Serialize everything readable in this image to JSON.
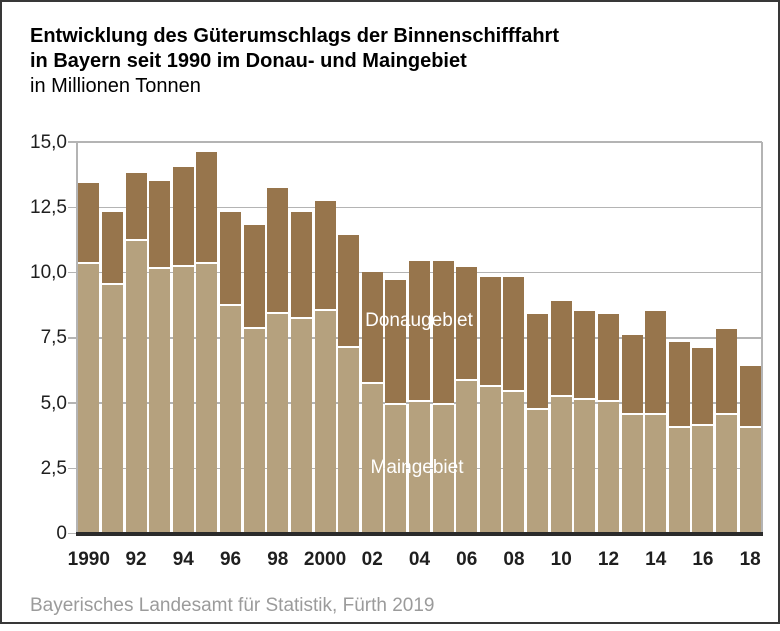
{
  "header": {
    "title_line1": "Entwicklung des Güterumschlags der Binnenschifffahrt",
    "title_line2": "in Bayern seit 1990 im Donau- und Maingebiet",
    "subtitle": "in Millionen Tonnen"
  },
  "footer": {
    "source": "Bayerisches Landesamt für Statistik, Fürth 2019"
  },
  "colors": {
    "maingebiet_bar": "#b5a17e",
    "donaugebiet_bar": "#97754c",
    "gridline": "#b4b4b4",
    "baseline": "#2b2b2b",
    "frame_border": "#383838",
    "source_text": "#9b9b9b",
    "inside_label_text": "#ffffff"
  },
  "chart_data": {
    "type": "bar",
    "stacked": true,
    "title": "Entwicklung des Güterumschlags der Binnenschifffahrt in Bayern seit 1990 im Donau- und Maingebiet",
    "unit": "in Millionen Tonnen",
    "grid": true,
    "legend_position": "inside-bars",
    "ylim": [
      0,
      15
    ],
    "categories": [
      1990,
      1991,
      1992,
      1993,
      1994,
      1995,
      1996,
      1997,
      1998,
      1999,
      2000,
      2001,
      2002,
      2003,
      2004,
      2005,
      2006,
      2007,
      2008,
      2009,
      2010,
      2011,
      2012,
      2013,
      2014,
      2015,
      2016,
      2017,
      2018
    ],
    "series": [
      {
        "name": "Maingebiet",
        "color": "#b5a17e",
        "values": [
          10.4,
          9.6,
          11.3,
          10.2,
          10.3,
          10.4,
          8.8,
          7.9,
          8.5,
          8.3,
          8.6,
          7.2,
          5.8,
          5.0,
          5.1,
          5.0,
          5.9,
          5.7,
          5.5,
          4.8,
          5.3,
          5.2,
          5.1,
          4.6,
          4.6,
          4.1,
          4.2,
          4.6,
          4.1
        ]
      },
      {
        "name": "Donaugebiet",
        "color": "#97754c",
        "values": [
          3.1,
          2.8,
          2.6,
          3.4,
          3.8,
          4.3,
          3.6,
          4.0,
          4.8,
          4.1,
          4.2,
          4.3,
          4.3,
          4.8,
          5.4,
          5.5,
          4.4,
          4.2,
          4.4,
          3.7,
          3.7,
          3.4,
          3.4,
          3.1,
          4.0,
          3.3,
          3.0,
          3.3,
          2.4
        ]
      }
    ],
    "y_ticks": [
      {
        "value": 0,
        "label": "0"
      },
      {
        "value": 2.5,
        "label": "2,5"
      },
      {
        "value": 5,
        "label": "5,0"
      },
      {
        "value": 7.5,
        "label": "7,5"
      },
      {
        "value": 10,
        "label": "10,0"
      },
      {
        "value": 12.5,
        "label": "12,5"
      },
      {
        "value": 15,
        "label": "15,0"
      }
    ],
    "x_ticks": [
      {
        "index": 0,
        "label": "1990"
      },
      {
        "index": 2,
        "label": "92"
      },
      {
        "index": 4,
        "label": "94"
      },
      {
        "index": 6,
        "label": "96"
      },
      {
        "index": 8,
        "label": "98"
      },
      {
        "index": 10,
        "label": "2000"
      },
      {
        "index": 12,
        "label": "02"
      },
      {
        "index": 14,
        "label": "04"
      },
      {
        "index": 16,
        "label": "06"
      },
      {
        "index": 18,
        "label": "08"
      },
      {
        "index": 20,
        "label": "10"
      },
      {
        "index": 22,
        "label": "12"
      },
      {
        "index": 24,
        "label": "14"
      },
      {
        "index": 26,
        "label": "16"
      },
      {
        "index": 28,
        "label": "18"
      }
    ]
  }
}
